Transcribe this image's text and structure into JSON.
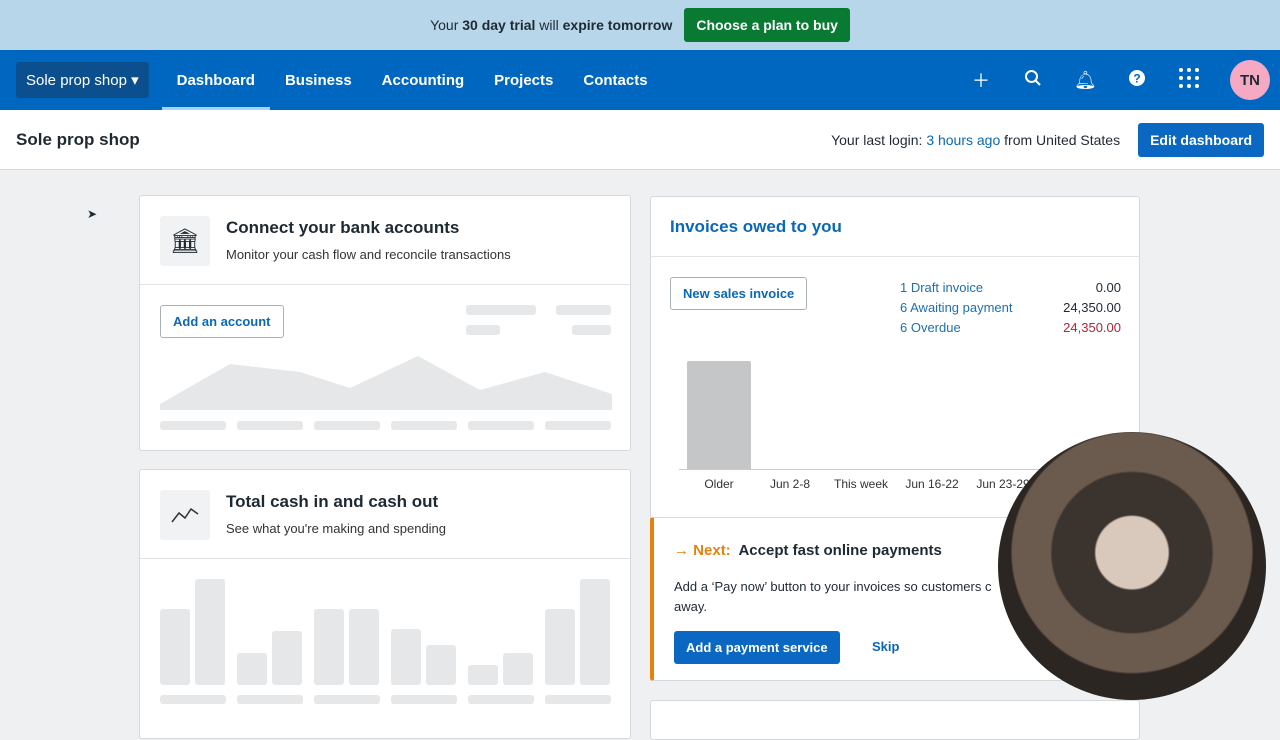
{
  "banner": {
    "pre": "Your ",
    "days": "30 day trial",
    "mid": " will ",
    "expire": "expire tomorrow",
    "cta": "Choose a plan to buy"
  },
  "nav": {
    "org": "Sole prop shop",
    "tabs": [
      "Dashboard",
      "Business",
      "Accounting",
      "Projects",
      "Contacts"
    ],
    "active": "Dashboard",
    "avatar": "TN",
    "icons": [
      "plus-icon",
      "search-icon",
      "bell-icon",
      "help-icon",
      "apps-grid-icon"
    ]
  },
  "sub": {
    "title": "Sole prop shop",
    "login_pre": "Your last login: ",
    "login_time": "3 hours ago",
    "login_post": " from United States",
    "edit": "Edit dashboard"
  },
  "bank": {
    "title": "Connect your bank accounts",
    "desc": "Monitor your cash flow and reconcile transactions",
    "button": "Add an account"
  },
  "cash": {
    "title": "Total cash in and cash out",
    "desc": "See what you're making and spending"
  },
  "invoices": {
    "title": "Invoices owed to you",
    "button": "New sales invoice",
    "summary": [
      {
        "label": "1 Draft invoice",
        "amount": "0.00"
      },
      {
        "label": "6 Awaiting payment",
        "amount": "24,350.00"
      },
      {
        "label": "6 Overdue",
        "amount": "24,350.00",
        "color": "#b2243a"
      }
    ]
  },
  "chart_data": {
    "type": "bar",
    "categories": [
      "Older",
      "Jun 2-8",
      "This week",
      "Jun 16-22",
      "Jun 23-29"
    ],
    "values": [
      24350,
      0,
      0,
      0,
      0
    ]
  },
  "next": {
    "prefix": "Next:",
    "title": "Accept fast online payments",
    "body": "Add a ‘Pay now’ button to your invoices so customers c",
    "body2": "away.",
    "button": "Add a payment service",
    "skip": "Skip",
    "accent": "#e5820e"
  }
}
